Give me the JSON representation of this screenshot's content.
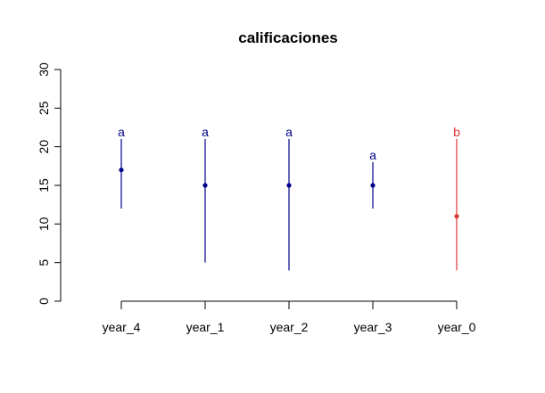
{
  "chart_data": {
    "type": "scatter",
    "title": "calificaciones",
    "xlabel": "",
    "ylabel": "",
    "categories": [
      "year_4",
      "year_1",
      "year_2",
      "year_3",
      "year_0"
    ],
    "ylim": [
      0,
      30
    ],
    "yticks": [
      0,
      5,
      10,
      15,
      20,
      25,
      30
    ],
    "grid": false,
    "legend": "none",
    "groups": [
      {
        "category": "year_4",
        "point": 17,
        "low": 12,
        "high": 21,
        "letter": "a",
        "color": "#00008B"
      },
      {
        "category": "year_1",
        "point": 15,
        "low": 5,
        "high": 21,
        "letter": "a",
        "color": "#00008B"
      },
      {
        "category": "year_2",
        "point": 15,
        "low": 4,
        "high": 21,
        "letter": "a",
        "color": "#00008B"
      },
      {
        "category": "year_3",
        "point": 15,
        "low": 12,
        "high": 18,
        "letter": "a",
        "color": "#00008B"
      },
      {
        "category": "year_0",
        "point": 11,
        "low": 4,
        "high": 21,
        "letter": "b",
        "color": "#E03535"
      }
    ]
  }
}
